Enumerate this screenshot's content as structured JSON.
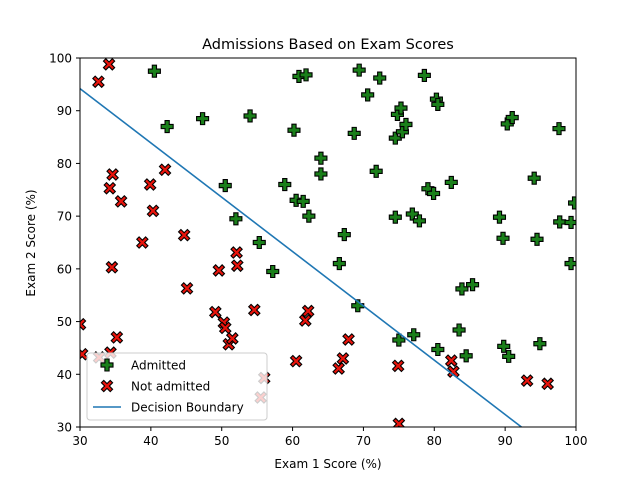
{
  "chart_data": {
    "type": "scatter",
    "title": "Admissions Based on Exam Scores",
    "xlabel": "Exam 1 Score (%)",
    "ylabel": "Exam 2 Score (%)",
    "xlim": [
      30,
      100
    ],
    "ylim": [
      30,
      100
    ],
    "xticks": [
      "30",
      "40",
      "50",
      "60",
      "70",
      "80",
      "90",
      "100"
    ],
    "yticks": [
      "30",
      "40",
      "50",
      "60",
      "70",
      "80",
      "90",
      "100"
    ],
    "grid": false,
    "legend_placement": "lower-left",
    "legend": [
      {
        "label": "Admitted",
        "marker": "plus",
        "color": "#1a7f1a"
      },
      {
        "label": "Not admitted",
        "marker": "x",
        "color": "#e8140c"
      },
      {
        "label": "Decision Boundary",
        "marker": "line",
        "color": "#1f77b4"
      }
    ],
    "series": [
      {
        "name": "Admitted",
        "marker": "plus",
        "color": "#1a7f1a",
        "points": [
          [
            40.5,
            97.5
          ],
          [
            42.3,
            87.0
          ],
          [
            47.3,
            88.5
          ],
          [
            50.5,
            75.8
          ],
          [
            52.0,
            69.5
          ],
          [
            54.0,
            89.0
          ],
          [
            55.3,
            65.0
          ],
          [
            57.2,
            59.5
          ],
          [
            58.9,
            76.0
          ],
          [
            60.2,
            86.3
          ],
          [
            60.5,
            73.0
          ],
          [
            60.9,
            96.5
          ],
          [
            61.5,
            72.8
          ],
          [
            61.9,
            96.8
          ],
          [
            62.3,
            70.0
          ],
          [
            64.0,
            81.0
          ],
          [
            64.0,
            78.0
          ],
          [
            66.6,
            61.0
          ],
          [
            67.3,
            66.5
          ],
          [
            68.7,
            85.7
          ],
          [
            69.2,
            53.0
          ],
          [
            69.4,
            97.7
          ],
          [
            70.6,
            93.0
          ],
          [
            71.8,
            78.5
          ],
          [
            72.3,
            96.2
          ],
          [
            74.5,
            84.8
          ],
          [
            74.5,
            69.8
          ],
          [
            74.8,
            89.3
          ],
          [
            75.0,
            46.5
          ],
          [
            75.3,
            90.5
          ],
          [
            75.5,
            86.0
          ],
          [
            76.0,
            87.4
          ],
          [
            76.9,
            70.4
          ],
          [
            77.1,
            47.5
          ],
          [
            77.9,
            69.1
          ],
          [
            78.6,
            96.7
          ],
          [
            79.1,
            75.2
          ],
          [
            79.9,
            74.3
          ],
          [
            80.3,
            92.2
          ],
          [
            80.5,
            91.2
          ],
          [
            80.5,
            44.7
          ],
          [
            82.4,
            76.4
          ],
          [
            83.5,
            48.4
          ],
          [
            83.9,
            56.2
          ],
          [
            84.5,
            43.5
          ],
          [
            85.4,
            57.0
          ],
          [
            89.2,
            69.8
          ],
          [
            89.7,
            65.8
          ],
          [
            89.8,
            45.3
          ],
          [
            90.3,
            87.5
          ],
          [
            90.5,
            43.4
          ],
          [
            91.0,
            88.7
          ],
          [
            94.1,
            77.2
          ],
          [
            94.5,
            65.6
          ],
          [
            94.9,
            45.8
          ],
          [
            97.6,
            86.6
          ],
          [
            97.7,
            68.9
          ],
          [
            99.3,
            68.8
          ],
          [
            99.3,
            61.0
          ],
          [
            99.8,
            72.5
          ]
        ]
      },
      {
        "name": "Not admitted",
        "marker": "x",
        "color": "#e8140c",
        "points": [
          [
            30.0,
            49.5
          ],
          [
            30.3,
            43.8
          ],
          [
            32.6,
            95.5
          ],
          [
            32.7,
            43.2
          ],
          [
            34.1,
            98.8
          ],
          [
            34.2,
            75.3
          ],
          [
            34.3,
            44.1
          ],
          [
            34.5,
            60.3
          ],
          [
            34.6,
            77.9
          ],
          [
            35.2,
            47.0
          ],
          [
            35.8,
            72.8
          ],
          [
            38.8,
            65.0
          ],
          [
            39.9,
            76.0
          ],
          [
            40.3,
            71.0
          ],
          [
            42.0,
            78.8
          ],
          [
            44.7,
            66.4
          ],
          [
            45.1,
            56.3
          ],
          [
            49.1,
            51.8
          ],
          [
            49.6,
            59.7
          ],
          [
            50.3,
            49.8
          ],
          [
            50.5,
            48.8
          ],
          [
            51.0,
            45.7
          ],
          [
            51.5,
            46.8
          ],
          [
            52.1,
            63.1
          ],
          [
            52.2,
            60.6
          ],
          [
            54.6,
            52.2
          ],
          [
            55.5,
            35.6
          ],
          [
            56.0,
            39.3
          ],
          [
            60.5,
            42.5
          ],
          [
            61.8,
            50.2
          ],
          [
            62.2,
            52.0
          ],
          [
            66.5,
            41.1
          ],
          [
            67.1,
            43.0
          ],
          [
            67.9,
            46.6
          ],
          [
            74.9,
            41.6
          ],
          [
            75.0,
            30.6
          ],
          [
            82.4,
            42.6
          ],
          [
            82.7,
            40.5
          ],
          [
            93.1,
            38.8
          ],
          [
            96.0,
            38.2
          ]
        ]
      }
    ],
    "decision_boundary": {
      "name": "Decision Boundary",
      "color": "#1f77b4",
      "x": [
        30,
        92.3
      ],
      "y": [
        94.2,
        30
      ]
    }
  }
}
